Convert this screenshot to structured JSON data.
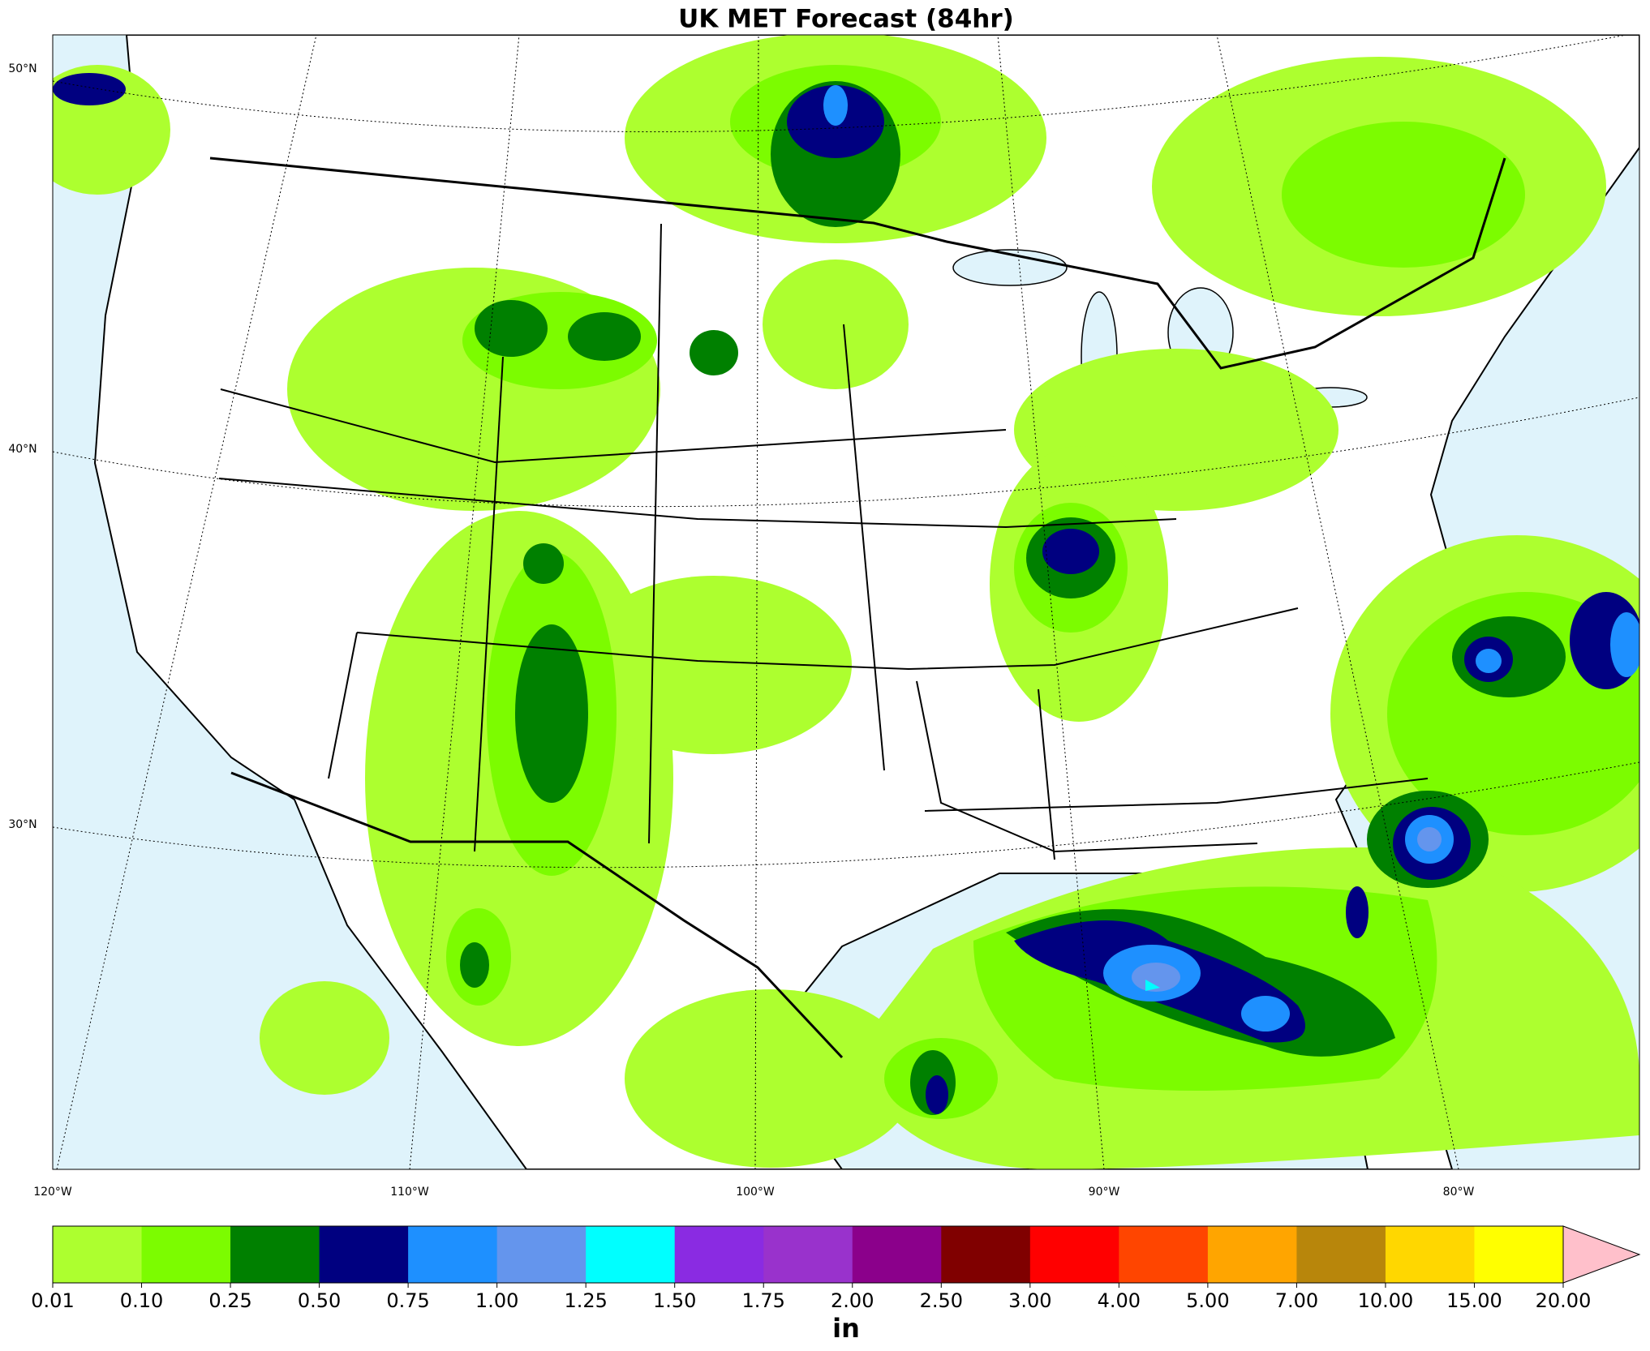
{
  "title": "UK MET Forecast (84hr)",
  "lat_labels": [
    "50°N",
    "40°N",
    "30°N"
  ],
  "lon_labels": [
    "120°W",
    "110°W",
    "100°W",
    "90°W",
    "80°W"
  ],
  "colorbar": {
    "levels": [
      "0.01",
      "0.10",
      "0.25",
      "0.50",
      "0.75",
      "1.00",
      "1.25",
      "1.50",
      "1.75",
      "2.00",
      "2.50",
      "3.00",
      "4.00",
      "5.00",
      "7.00",
      "10.00",
      "15.00",
      "20.00"
    ],
    "colors": [
      "#adff2f",
      "#7cfc00",
      "#008000",
      "#000080",
      "#1e90ff",
      "#6495ed",
      "#00ffff",
      "#8a2be2",
      "#9932cc",
      "#8b008b",
      "#800000",
      "#ff0000",
      "#ff4500",
      "#ffa500",
      "#b8860b",
      "#ffd700",
      "#ffff00"
    ],
    "extend_color": "#ffc0cb",
    "unit": "in"
  }
}
